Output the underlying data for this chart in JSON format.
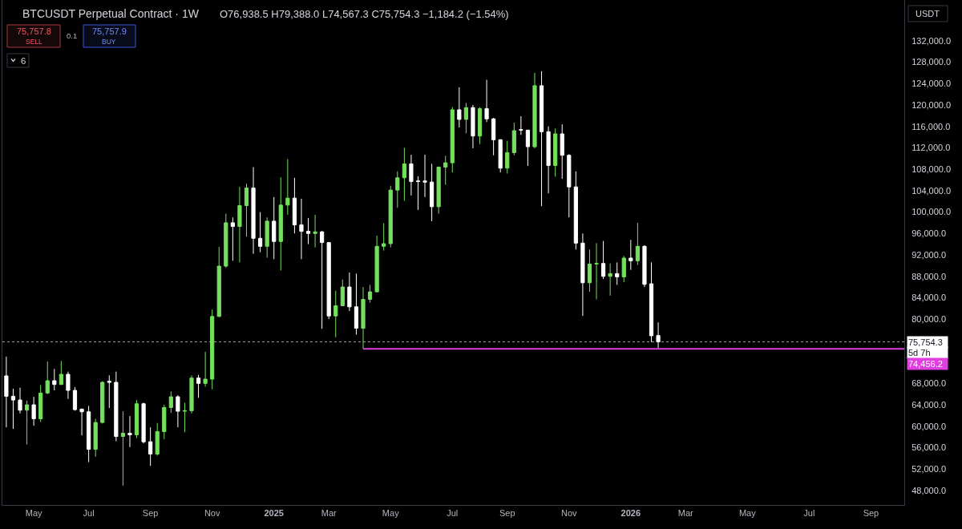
{
  "chart_data": {
    "type": "candlestick",
    "title": "BTCUSDT Perpetual Contract · 1W",
    "x": [
      "2024-04-08",
      "2024-04-15",
      "2024-04-22",
      "2024-04-29",
      "2024-05-06",
      "2024-05-13",
      "2024-05-20",
      "2024-05-27",
      "2024-06-03",
      "2024-06-10",
      "2024-06-17",
      "2024-06-24",
      "2024-07-01",
      "2024-07-08",
      "2024-07-15",
      "2024-07-22",
      "2024-07-29",
      "2024-08-05",
      "2024-08-12",
      "2024-08-19",
      "2024-08-26",
      "2024-09-02",
      "2024-09-09",
      "2024-09-16",
      "2024-09-23",
      "2024-09-30",
      "2024-10-07",
      "2024-10-14",
      "2024-10-21",
      "2024-10-28",
      "2024-11-04",
      "2024-11-11",
      "2024-11-18",
      "2024-11-25",
      "2024-12-02",
      "2024-12-09",
      "2024-12-16",
      "2024-12-23",
      "2024-12-30",
      "2025-01-06",
      "2025-01-13",
      "2025-01-20",
      "2025-01-27",
      "2025-02-03",
      "2025-02-10",
      "2025-02-17",
      "2025-02-24",
      "2025-03-03",
      "2025-03-10",
      "2025-03-17",
      "2025-03-24",
      "2025-03-31",
      "2025-04-07",
      "2025-04-14",
      "2025-04-21",
      "2025-04-28",
      "2025-05-05",
      "2025-05-12",
      "2025-05-19",
      "2025-05-26",
      "2025-06-02",
      "2025-06-09",
      "2025-06-16",
      "2025-06-23",
      "2025-06-30",
      "2025-07-07",
      "2025-07-14",
      "2025-07-21",
      "2025-07-28",
      "2025-08-04",
      "2025-08-11",
      "2025-08-18",
      "2025-08-25",
      "2025-09-01",
      "2025-09-08",
      "2025-09-15",
      "2025-09-22",
      "2025-09-29",
      "2025-10-06",
      "2025-10-13",
      "2025-10-20",
      "2025-10-27",
      "2025-11-03",
      "2025-11-10",
      "2025-11-17",
      "2025-11-24",
      "2025-12-01",
      "2025-12-08",
      "2025-12-15",
      "2025-12-22",
      "2025-12-29",
      "2026-01-05",
      "2026-01-12",
      "2026-01-19",
      "2026-01-26",
      "2026-02-02"
    ],
    "ohlc": [
      [
        69400,
        73000,
        59800,
        65600
      ],
      [
        65600,
        67000,
        59500,
        64900
      ],
      [
        64900,
        67200,
        62400,
        63000
      ],
      [
        63000,
        64800,
        56600,
        64000
      ],
      [
        64000,
        65500,
        60100,
        61400
      ],
      [
        61400,
        67700,
        60800,
        66200
      ],
      [
        66200,
        72100,
        66000,
        68500
      ],
      [
        68500,
        70700,
        66700,
        67800
      ],
      [
        67800,
        72200,
        67700,
        69700
      ],
      [
        69700,
        70200,
        65100,
        66700
      ],
      [
        66700,
        67300,
        62900,
        63100
      ],
      [
        63200,
        63300,
        58300,
        62700
      ],
      [
        62700,
        63800,
        53300,
        55700
      ],
      [
        55700,
        61400,
        54300,
        60700
      ],
      [
        60700,
        68400,
        60500,
        68200
      ],
      [
        68400,
        69500,
        63400,
        68200
      ],
      [
        68200,
        70200,
        57200,
        58100
      ],
      [
        58100,
        62800,
        48900,
        58700
      ],
      [
        58700,
        61900,
        56100,
        58400
      ],
      [
        58400,
        64900,
        57800,
        64200
      ],
      [
        64200,
        64400,
        56800,
        57100
      ],
      [
        57100,
        59800,
        52600,
        54800
      ],
      [
        54800,
        60600,
        54500,
        59000
      ],
      [
        59000,
        64000,
        57600,
        63500
      ],
      [
        63500,
        66500,
        62500,
        65500
      ],
      [
        65500,
        65800,
        59800,
        62800
      ],
      [
        62800,
        64400,
        58900,
        62900
      ],
      [
        62900,
        69500,
        62400,
        69000
      ],
      [
        69000,
        69600,
        65300,
        68000
      ],
      [
        68000,
        73900,
        67400,
        68800
      ],
      [
        68800,
        81800,
        66900,
        80500
      ],
      [
        80500,
        93500,
        80400,
        89900
      ],
      [
        89900,
        99700,
        89600,
        98000
      ],
      [
        98000,
        99000,
        90900,
        97300
      ],
      [
        97300,
        104700,
        90600,
        101200
      ],
      [
        101200,
        105300,
        95400,
        104500
      ],
      [
        104500,
        108400,
        92200,
        95100
      ],
      [
        95100,
        100000,
        92500,
        93600
      ],
      [
        93600,
        99000,
        91500,
        98300
      ],
      [
        98300,
        102800,
        91200,
        94500
      ],
      [
        94500,
        106500,
        89100,
        101300
      ],
      [
        101300,
        109900,
        99500,
        102600
      ],
      [
        102600,
        106400,
        96000,
        97600
      ],
      [
        97600,
        102500,
        91200,
        96400
      ],
      [
        96400,
        98900,
        94000,
        96000
      ],
      [
        96000,
        99500,
        93400,
        96300
      ],
      [
        96300,
        96500,
        78200,
        94300
      ],
      [
        94300,
        94400,
        80000,
        80600
      ],
      [
        80600,
        85300,
        76600,
        82500
      ],
      [
        82500,
        87400,
        82400,
        86000
      ],
      [
        86000,
        88700,
        81500,
        82300
      ],
      [
        82300,
        88500,
        77100,
        78300
      ],
      [
        78300,
        86000,
        74456.2,
        83700
      ],
      [
        83700,
        86400,
        83100,
        85100
      ],
      [
        85100,
        95600,
        85000,
        93600
      ],
      [
        93600,
        97900,
        92800,
        94100
      ],
      [
        94100,
        104900,
        93400,
        104100
      ],
      [
        104100,
        107600,
        100800,
        106400
      ],
      [
        106400,
        112000,
        102100,
        109000
      ],
      [
        109000,
        110700,
        103100,
        105700
      ],
      [
        105800,
        106700,
        100400,
        105700
      ],
      [
        105800,
        110700,
        102800,
        105600
      ],
      [
        105600,
        109000,
        98300,
        101000
      ],
      [
        101000,
        108500,
        99700,
        108400
      ],
      [
        108400,
        110500,
        105100,
        109200
      ],
      [
        109200,
        119600,
        107400,
        119100
      ],
      [
        119100,
        123300,
        115800,
        117300
      ],
      [
        117300,
        120400,
        114700,
        119500
      ],
      [
        119500,
        120000,
        111900,
        114200
      ],
      [
        114200,
        119600,
        112700,
        119300
      ],
      [
        119300,
        124700,
        116800,
        117400
      ],
      [
        117400,
        117600,
        110600,
        113500
      ],
      [
        113500,
        113600,
        107400,
        108200
      ],
      [
        108200,
        113300,
        107200,
        111100
      ],
      [
        111100,
        116700,
        110600,
        115200
      ],
      [
        115400,
        117900,
        114400,
        115300
      ],
      [
        115300,
        115300,
        108600,
        112200
      ],
      [
        112200,
        126000,
        111900,
        123600
      ],
      [
        123600,
        126300,
        101100,
        115000
      ],
      [
        115000,
        116000,
        103500,
        108700
      ],
      [
        108700,
        115600,
        106600,
        114600
      ],
      [
        114600,
        116400,
        106200,
        110600
      ],
      [
        110600,
        110800,
        99000,
        104700
      ],
      [
        104700,
        107600,
        93000,
        94200
      ],
      [
        94200,
        96000,
        80600,
        86800
      ],
      [
        86800,
        93000,
        85100,
        90300
      ],
      [
        90300,
        94200,
        83700,
        90400
      ],
      [
        90400,
        94600,
        87500,
        88000
      ],
      [
        88000,
        90400,
        84400,
        88500
      ],
      [
        88500,
        90600,
        86400,
        87900
      ],
      [
        87900,
        91800,
        86900,
        91400
      ],
      [
        91400,
        94800,
        89200,
        90900
      ],
      [
        90900,
        98000,
        90100,
        93600
      ],
      [
        93600,
        93800,
        86000,
        86500
      ],
      [
        86600,
        90600,
        75700,
        76900
      ],
      [
        76938.5,
        79388.0,
        74567.3,
        75754.3
      ]
    ],
    "colors": [
      "#ffffff",
      "#ffffff",
      "#ffffff",
      "#74e05e",
      "#ffffff",
      "#74e05e",
      "#74e05e",
      "#ffffff",
      "#74e05e",
      "#ffffff",
      "#ffffff",
      "#ffffff",
      "#ffffff",
      "#74e05e",
      "#74e05e",
      "#ffffff",
      "#ffffff",
      "#74e05e",
      "#ffffff",
      "#74e05e",
      "#ffffff",
      "#ffffff",
      "#74e05e",
      "#74e05e",
      "#74e05e",
      "#ffffff",
      "#74e05e",
      "#74e05e",
      "#ffffff",
      "#74e05e",
      "#74e05e",
      "#74e05e",
      "#74e05e",
      "#ffffff",
      "#74e05e",
      "#74e05e",
      "#ffffff",
      "#ffffff",
      "#74e05e",
      "#ffffff",
      "#74e05e",
      "#74e05e",
      "#ffffff",
      "#ffffff",
      "#ffffff",
      "#74e05e",
      "#ffffff",
      "#ffffff",
      "#74e05e",
      "#74e05e",
      "#ffffff",
      "#ffffff",
      "#74e05e",
      "#74e05e",
      "#74e05e",
      "#74e05e",
      "#74e05e",
      "#74e05e",
      "#74e05e",
      "#ffffff",
      "#ffffff",
      "#ffffff",
      "#ffffff",
      "#74e05e",
      "#74e05e",
      "#74e05e",
      "#ffffff",
      "#74e05e",
      "#ffffff",
      "#74e05e",
      "#ffffff",
      "#ffffff",
      "#ffffff",
      "#74e05e",
      "#74e05e",
      "#ffffff",
      "#ffffff",
      "#74e05e",
      "#ffffff",
      "#ffffff",
      "#74e05e",
      "#ffffff",
      "#ffffff",
      "#ffffff",
      "#ffffff",
      "#74e05e",
      "#74e05e",
      "#ffffff",
      "#74e05e",
      "#ffffff",
      "#74e05e",
      "#ffffff",
      "#74e05e",
      "#ffffff",
      "#ffffff",
      "#ffffff"
    ],
    "xlim": [
      "2024-04-04",
      "2026-10-11"
    ],
    "xticks": [
      {
        "value": "2024-05-06",
        "label": "May"
      },
      {
        "value": "2024-07-01",
        "label": "Jul"
      },
      {
        "value": "2024-09-02",
        "label": "Sep"
      },
      {
        "value": "2024-11-04",
        "label": "Nov"
      },
      {
        "value": "2025-01-06",
        "label": "2025"
      },
      {
        "value": "2025-03-03",
        "label": "Mar"
      },
      {
        "value": "2025-05-05",
        "label": "May"
      },
      {
        "value": "2025-07-07",
        "label": "Jul"
      },
      {
        "value": "2025-09-01",
        "label": "Sep"
      },
      {
        "value": "2025-11-03",
        "label": "Nov"
      },
      {
        "value": "2026-01-05",
        "label": "2026"
      },
      {
        "value": "2026-03-02",
        "label": "Mar"
      },
      {
        "value": "2026-05-04",
        "label": "May"
      },
      {
        "value": "2026-07-06",
        "label": "Jul"
      },
      {
        "value": "2026-09-07",
        "label": "Sep"
      }
    ],
    "ylim": [
      45300,
      139600
    ],
    "yticks": [
      {
        "value": 132000,
        "label": "132,000.0"
      },
      {
        "value": 128000,
        "label": "128,000.0"
      },
      {
        "value": 124000,
        "label": "124,000.0"
      },
      {
        "value": 120000,
        "label": "120,000.0"
      },
      {
        "value": 116000,
        "label": "116,000.0"
      },
      {
        "value": 112000,
        "label": "112,000.0"
      },
      {
        "value": 108000,
        "label": "108,000.0"
      },
      {
        "value": 104000,
        "label": "104,000.0"
      },
      {
        "value": 100000,
        "label": "100,000.0"
      },
      {
        "value": 96000,
        "label": "96,000.0"
      },
      {
        "value": 92000,
        "label": "92,000.0"
      },
      {
        "value": 88000,
        "label": "88,000.0"
      },
      {
        "value": 84000,
        "label": "84,000.0"
      },
      {
        "value": 80000,
        "label": "80,000.0"
      },
      {
        "value": 68000,
        "label": "68,000.0"
      },
      {
        "value": 64000,
        "label": "64,000.0"
      },
      {
        "value": 60000,
        "label": "60,000.0"
      },
      {
        "value": 56000,
        "label": "56,000.0"
      },
      {
        "value": 52000,
        "label": "52,000.0"
      },
      {
        "value": 48000,
        "label": "48,000.0"
      }
    ],
    "ref_lines": [
      {
        "axis": "y",
        "value": 75754.3,
        "label": "75,754.3",
        "line_style": "dotted",
        "color": "#a0a0a0"
      }
    ],
    "series": [
      {
        "type": "line",
        "x": [
          "2025-04-07",
          "2026-10-11"
        ],
        "values": [
          74456.2,
          74456.2
        ],
        "color": "#e03ee0"
      }
    ],
    "annotations": [
      "O76,938.5 H79,388.0 L74,567.3 C75,754.3 −1,184.2 (−1.54%)",
      "75,757.8",
      "SELL",
      "0.1",
      "75,757.9",
      "BUY",
      "6",
      "USDT",
      "5d 7h",
      {
        "text": "74,456.2",
        "x": "2026-10-11",
        "y": 74456.2
      }
    ],
    "grid": false
  }
}
